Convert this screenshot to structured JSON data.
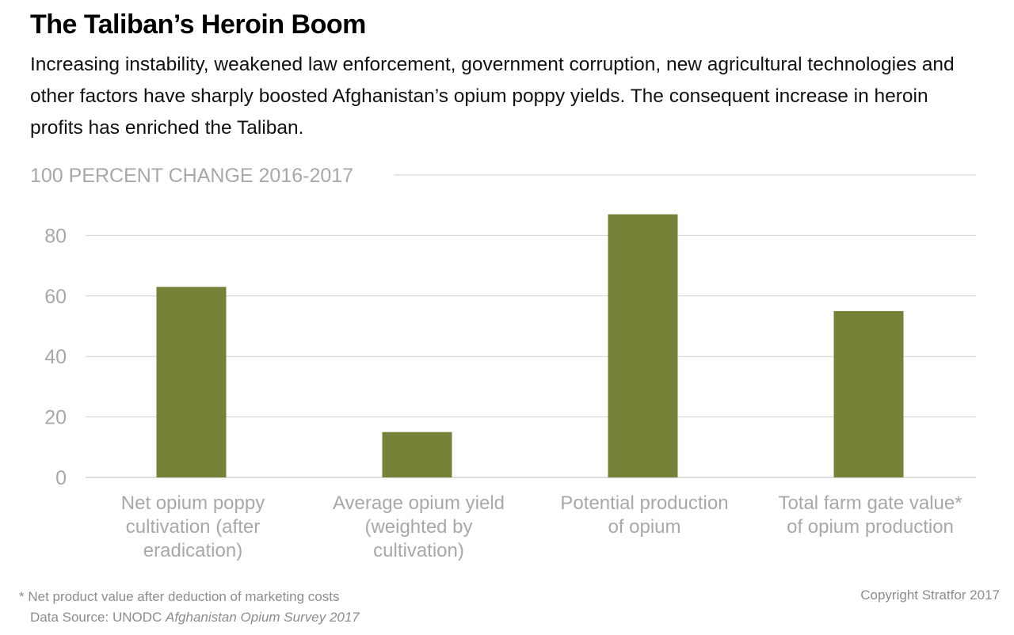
{
  "chart_data": {
    "type": "bar",
    "title": "The Taliban’s Heroin Boom",
    "subtitle": "Increasing instability, weakened law enforcement, government corruption, new agricultural technologies and other factors have sharply boosted Afghanistan’s opium poppy yields. The consequent increase in heroin profits has enriched the Taliban.",
    "ylabel": "PERCENT CHANGE 2016-2017",
    "xlabel": "",
    "ylim": [
      0,
      100
    ],
    "yticks": [
      0,
      20,
      40,
      60,
      80,
      100
    ],
    "grid": true,
    "categories": [
      "Net opium poppy cultivation (after eradication)",
      "Average opium yield (weighted by cultivation)",
      "Potential production of opium",
      "Total farm gate value* of opium production"
    ],
    "category_lines": [
      [
        "Net opium poppy",
        "cultivation (after",
        "eradication)"
      ],
      [
        "Average opium yield",
        "(weighted by",
        "cultivation)"
      ],
      [
        "Potential production",
        "of opium"
      ],
      [
        "Total farm gate value*",
        "of opium production"
      ]
    ],
    "values": [
      63,
      15,
      87,
      55
    ],
    "bar_color": "#778138"
  },
  "footnote": "* Net product value after deduction of marketing costs",
  "source_label": "Data Source: UNODC ",
  "source_title": "Afghanistan Opium Survey 2017",
  "copyright": "Copyright Stratfor 2017"
}
